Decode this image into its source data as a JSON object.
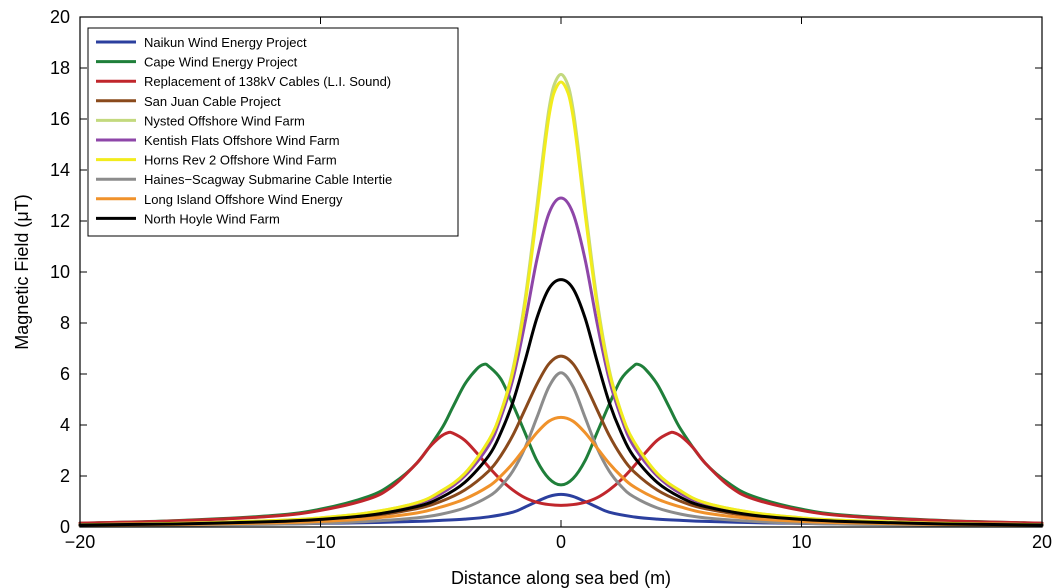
{
  "chart_data": {
    "type": "line",
    "title": "",
    "xlabel": "Distance along sea bed (m)",
    "ylabel": "Magnetic Field (μT)",
    "xlim": [
      -20,
      20
    ],
    "ylim": [
      0,
      20
    ],
    "xticks": [
      -20,
      -10,
      0,
      10,
      20
    ],
    "xtick_labels": [
      "−20",
      "−10",
      "0",
      "10",
      "20"
    ],
    "yticks": [
      0,
      2,
      4,
      6,
      8,
      10,
      12,
      14,
      16,
      18,
      20
    ],
    "ytick_labels": [
      "0",
      "2",
      "4",
      "6",
      "8",
      "10",
      "12",
      "14",
      "16",
      "18",
      "20"
    ],
    "grid": false,
    "legend_position": "top-left",
    "series": [
      {
        "name": "Naikun Wind Energy Project",
        "color": "#2b3f9e",
        "x": [
          -20,
          -16,
          -12,
          -10,
          -8,
          -6,
          -5,
          -4,
          -3,
          -2,
          -1.5,
          -1,
          -0.5,
          0,
          0.5,
          1,
          1.5,
          2,
          3,
          4,
          5,
          6,
          8,
          10,
          12,
          16,
          20
        ],
        "y": [
          0.07,
          0.09,
          0.12,
          0.14,
          0.17,
          0.22,
          0.26,
          0.31,
          0.4,
          0.58,
          0.78,
          1.0,
          1.2,
          1.28,
          1.2,
          1.0,
          0.78,
          0.58,
          0.4,
          0.31,
          0.26,
          0.22,
          0.17,
          0.14,
          0.12,
          0.09,
          0.07
        ]
      },
      {
        "name": "Cape Wind Energy Project",
        "color": "#1f7f3a",
        "x": [
          -20,
          -16,
          -12,
          -10,
          -8,
          -7,
          -6,
          -5,
          -4.5,
          -4,
          -3.5,
          -3.2,
          -3,
          -2.5,
          -2,
          -1.5,
          -1,
          -0.5,
          0,
          0.5,
          1,
          1.5,
          2,
          2.5,
          3,
          3.2,
          3.5,
          4,
          4.5,
          5,
          6,
          7,
          8,
          10,
          12,
          16,
          20
        ],
        "y": [
          0.15,
          0.25,
          0.45,
          0.7,
          1.2,
          1.7,
          2.5,
          3.8,
          4.7,
          5.6,
          6.2,
          6.38,
          6.3,
          5.8,
          4.8,
          3.7,
          2.6,
          1.9,
          1.65,
          1.9,
          2.6,
          3.7,
          4.8,
          5.8,
          6.3,
          6.38,
          6.2,
          5.6,
          4.7,
          3.8,
          2.5,
          1.7,
          1.2,
          0.7,
          0.45,
          0.25,
          0.15
        ]
      },
      {
        "name": "Replacement of 138kV Cables (L.I. Sound)",
        "color": "#c0262c",
        "x": [
          -20,
          -16,
          -12,
          -10,
          -8,
          -7,
          -6,
          -5.5,
          -5,
          -4.7,
          -4.5,
          -4,
          -3.5,
          -3,
          -2.5,
          -2,
          -1.5,
          -1,
          -0.5,
          0,
          0.5,
          1,
          1.5,
          2,
          2.5,
          3,
          3.5,
          4,
          4.5,
          4.7,
          5,
          5.5,
          6,
          7,
          8,
          10,
          12,
          16,
          20
        ],
        "y": [
          0.15,
          0.24,
          0.42,
          0.65,
          1.1,
          1.6,
          2.5,
          3.1,
          3.55,
          3.7,
          3.68,
          3.4,
          2.9,
          2.35,
          1.85,
          1.45,
          1.15,
          0.97,
          0.88,
          0.85,
          0.88,
          0.97,
          1.15,
          1.45,
          1.85,
          2.35,
          2.9,
          3.4,
          3.68,
          3.7,
          3.55,
          3.1,
          2.5,
          1.6,
          1.1,
          0.65,
          0.42,
          0.24,
          0.15
        ]
      },
      {
        "name": "San Juan Cable Project",
        "color": "#8a4a1c",
        "x": [
          -20,
          -16,
          -12,
          -10,
          -8,
          -6,
          -5,
          -4,
          -3,
          -2.5,
          -2,
          -1.5,
          -1,
          -0.5,
          0,
          0.5,
          1,
          1.5,
          2,
          2.5,
          3,
          4,
          5,
          6,
          8,
          10,
          12,
          16,
          20
        ],
        "y": [
          0.08,
          0.12,
          0.2,
          0.28,
          0.42,
          0.72,
          1.0,
          1.45,
          2.2,
          2.8,
          3.6,
          4.6,
          5.6,
          6.4,
          6.7,
          6.4,
          5.6,
          4.6,
          3.6,
          2.8,
          2.2,
          1.45,
          1.0,
          0.72,
          0.42,
          0.28,
          0.2,
          0.12,
          0.08
        ]
      },
      {
        "name": "Nysted Offshore Wind Farm",
        "color": "#c3d97e",
        "x": [
          -20,
          -16,
          -12,
          -10,
          -8,
          -6,
          -5,
          -4,
          -3,
          -2.5,
          -2,
          -1.5,
          -1,
          -0.7,
          -0.5,
          -0.3,
          0,
          0.3,
          0.5,
          0.7,
          1,
          1.5,
          2,
          2.5,
          3,
          4,
          5,
          6,
          8,
          10,
          12,
          16,
          20
        ],
        "y": [
          0.09,
          0.14,
          0.25,
          0.36,
          0.56,
          0.95,
          1.4,
          2.1,
          3.4,
          4.5,
          6.2,
          8.9,
          12.6,
          15.0,
          16.4,
          17.3,
          17.75,
          17.3,
          16.4,
          15.0,
          12.6,
          8.9,
          6.2,
          4.5,
          3.4,
          2.1,
          1.4,
          0.95,
          0.56,
          0.36,
          0.25,
          0.14,
          0.09
        ]
      },
      {
        "name": "Kentish Flats Offshore Wind Farm",
        "color": "#8e46a8",
        "x": [
          -20,
          -16,
          -12,
          -10,
          -8,
          -6,
          -5,
          -4,
          -3,
          -2.5,
          -2,
          -1.5,
          -1,
          -0.5,
          0,
          0.5,
          1,
          1.5,
          2,
          2.5,
          3,
          4,
          5,
          6,
          8,
          10,
          12,
          16,
          20
        ],
        "y": [
          0.09,
          0.14,
          0.24,
          0.34,
          0.54,
          0.92,
          1.3,
          2.0,
          3.2,
          4.3,
          5.8,
          8.0,
          10.5,
          12.3,
          12.9,
          12.3,
          10.5,
          8.0,
          5.8,
          4.3,
          3.2,
          2.0,
          1.3,
          0.92,
          0.54,
          0.34,
          0.24,
          0.14,
          0.09
        ]
      },
      {
        "name": "Horns Rev 2 Offshore Wind Farm",
        "color": "#f2ec1c",
        "x": [
          -20,
          -16,
          -12,
          -10,
          -8,
          -6,
          -5,
          -4,
          -3,
          -2.5,
          -2,
          -1.5,
          -1,
          -0.7,
          -0.5,
          -0.3,
          0,
          0.3,
          0.5,
          0.7,
          1,
          1.5,
          2,
          2.5,
          3,
          4,
          5,
          6,
          8,
          10,
          12,
          16,
          20
        ],
        "y": [
          0.09,
          0.14,
          0.25,
          0.36,
          0.56,
          0.95,
          1.4,
          2.1,
          3.4,
          4.5,
          6.1,
          8.7,
          12.3,
          14.7,
          16.1,
          17.0,
          17.45,
          17.0,
          16.1,
          14.7,
          12.3,
          8.7,
          6.1,
          4.5,
          3.4,
          2.1,
          1.4,
          0.95,
          0.56,
          0.36,
          0.25,
          0.14,
          0.09
        ]
      },
      {
        "name": "Haines−Scagway Submarine Cable Intertie",
        "color": "#8c8c8c",
        "x": [
          -20,
          -16,
          -12,
          -10,
          -8,
          -6,
          -5,
          -4,
          -3,
          -2.5,
          -2,
          -1.5,
          -1,
          -0.5,
          0,
          0.5,
          1,
          1.5,
          2,
          2.5,
          3,
          4,
          5,
          6,
          8,
          10,
          12,
          16,
          20
        ],
        "y": [
          0.05,
          0.07,
          0.11,
          0.15,
          0.22,
          0.36,
          0.5,
          0.75,
          1.2,
          1.6,
          2.2,
          3.1,
          4.3,
          5.5,
          6.05,
          5.5,
          4.3,
          3.1,
          2.2,
          1.6,
          1.2,
          0.75,
          0.5,
          0.36,
          0.22,
          0.15,
          0.11,
          0.07,
          0.05
        ]
      },
      {
        "name": "Long Island Offshore Wind Energy",
        "color": "#f0922b",
        "x": [
          -20,
          -16,
          -12,
          -10,
          -8,
          -6,
          -5,
          -4,
          -3,
          -2.5,
          -2,
          -1.5,
          -1,
          -0.5,
          0,
          0.5,
          1,
          1.5,
          2,
          2.5,
          3,
          4,
          5,
          6,
          8,
          10,
          12,
          16,
          20
        ],
        "y": [
          0.07,
          0.1,
          0.16,
          0.22,
          0.33,
          0.55,
          0.78,
          1.1,
          1.6,
          2.0,
          2.5,
          3.1,
          3.7,
          4.15,
          4.3,
          4.15,
          3.7,
          3.1,
          2.5,
          2.0,
          1.6,
          1.1,
          0.78,
          0.55,
          0.33,
          0.22,
          0.16,
          0.1,
          0.07
        ]
      },
      {
        "name": "North Hoyle Wind Farm",
        "color": "#000000",
        "x": [
          -20,
          -16,
          -12,
          -10,
          -8,
          -6,
          -5,
          -4,
          -3,
          -2.5,
          -2,
          -1.5,
          -1,
          -0.5,
          0,
          0.5,
          1,
          1.5,
          2,
          2.5,
          3,
          4,
          5,
          6,
          8,
          10,
          12,
          16,
          20
        ],
        "y": [
          0.08,
          0.12,
          0.21,
          0.3,
          0.46,
          0.8,
          1.15,
          1.75,
          2.8,
          3.7,
          4.9,
          6.5,
          8.2,
          9.35,
          9.7,
          9.35,
          8.2,
          6.5,
          4.9,
          3.7,
          2.8,
          1.75,
          1.15,
          0.8,
          0.46,
          0.3,
          0.21,
          0.12,
          0.08
        ]
      }
    ]
  }
}
